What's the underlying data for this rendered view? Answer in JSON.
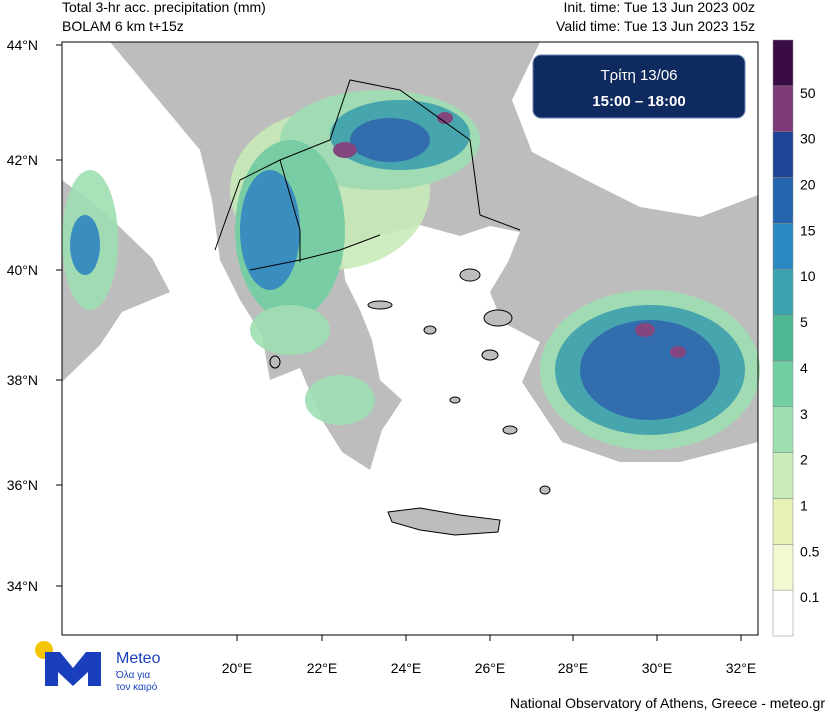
{
  "header": {
    "title_line1": "Total 3-hr acc. precipitation (mm)",
    "title_line2": "BOLAM 6 km t+15z",
    "init_time": "Init. time: Tue 13 Jun 2023 00z",
    "valid_time": "Valid time: Tue 13 Jun 2023 15z"
  },
  "time_box": {
    "day": "Τρίτη 13/06",
    "period": "15:00 – 18:00"
  },
  "map": {
    "lat_labels": [
      "44°N",
      "42°N",
      "40°N",
      "38°N",
      "36°N",
      "34°N"
    ],
    "lon_labels": [
      "20°E",
      "22°E",
      "24°E",
      "26°E",
      "28°E",
      "30°E",
      "32°E"
    ]
  },
  "colorbar": {
    "levels": [
      0.1,
      0.5,
      1,
      2,
      3,
      4,
      5,
      10,
      15,
      20,
      30,
      50
    ],
    "colors": [
      "#ffffff",
      "#f4f8d2",
      "#e6f2b6",
      "#c8ebb9",
      "#9edfb2",
      "#72cfa2",
      "#4fb995",
      "#3ba3ad",
      "#2b88c0",
      "#2366ad",
      "#1f4596",
      "#7d3a78",
      "#3a0c47"
    ]
  },
  "logo": {
    "name": "Meteo",
    "tagline_line1": "Όλα για",
    "tagline_line2": "τον καιρό"
  },
  "footer": "National Observatory of Athens, Greece - meteo.gr"
}
